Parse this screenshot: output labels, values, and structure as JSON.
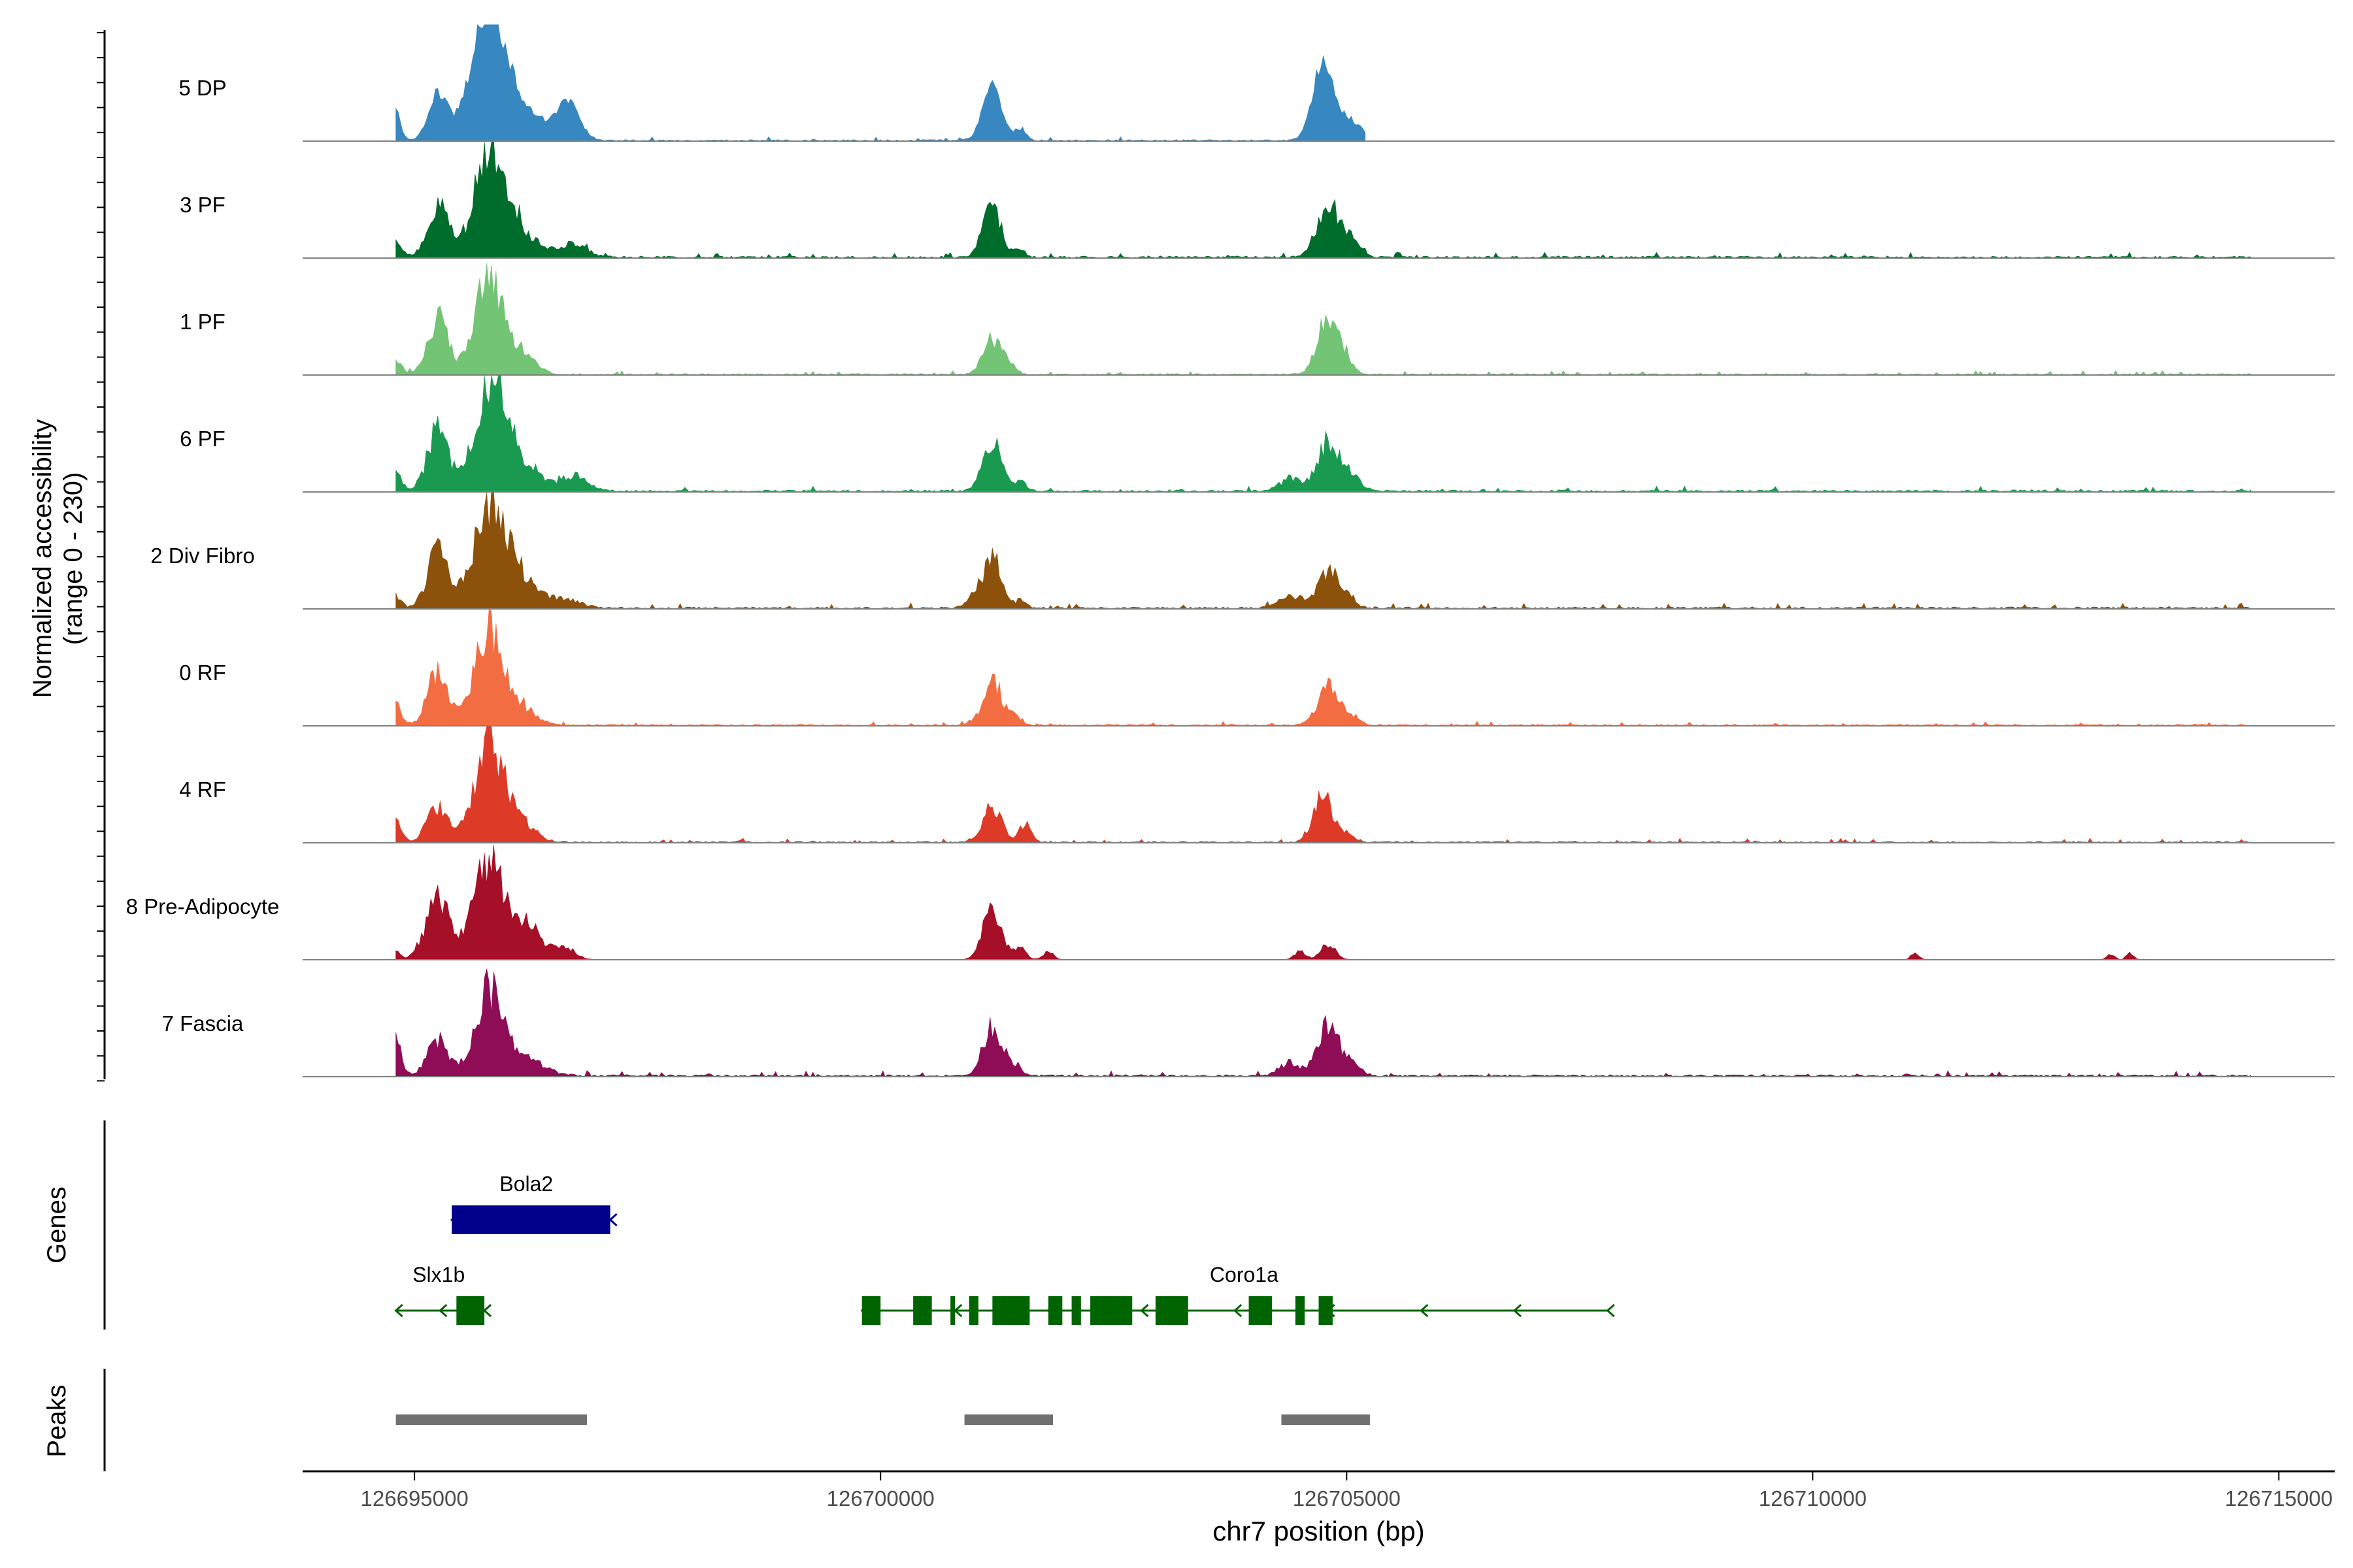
{
  "chart_data": {
    "type": "area",
    "title": "",
    "xlabel": "chr7 position (bp)",
    "ylabel": "Normalized accessibility",
    "ylabel_range": "(range 0 - 230)",
    "xlim": [
      126693800,
      126715600
    ],
    "ylim": [
      0,
      230
    ],
    "x_ticks": [
      126695000,
      126700000,
      126705000,
      126710000,
      126715000
    ],
    "x_tick_labels": [
      "126695000",
      "126700000",
      "126705000",
      "126710000",
      "126715000"
    ],
    "track_start": 126694800,
    "series": [
      {
        "name": "5 DP",
        "color": "#3787c0",
        "peaks": [
          [
            126694800,
            60,
            50
          ],
          [
            126695250,
            90,
            100
          ],
          [
            126695780,
            200,
            170
          ],
          [
            126696000,
            80,
            300
          ],
          [
            126696650,
            70,
            120
          ],
          [
            126701200,
            110,
            100
          ],
          [
            126701500,
            22,
            60
          ],
          [
            126704750,
            160,
            110
          ],
          [
            126705000,
            35,
            80
          ],
          [
            126705150,
            20,
            60
          ]
        ],
        "noise": 3,
        "end": 126705200,
        "smooth": 1
      },
      {
        "name": "3 PF",
        "color": "#006d2c",
        "peaks": [
          [
            126694800,
            30,
            60
          ],
          [
            126695250,
            100,
            110
          ],
          [
            126695800,
            200,
            160
          ],
          [
            126696100,
            50,
            200
          ],
          [
            126696700,
            25,
            150
          ],
          [
            126701200,
            95,
            100
          ],
          [
            126701500,
            15,
            60
          ],
          [
            126704800,
            100,
            120
          ],
          [
            126705050,
            30,
            100
          ]
        ],
        "noise": 4,
        "end": 126714700,
        "smooth": 0
      },
      {
        "name": "1 PF",
        "color": "#74c476",
        "peaks": [
          [
            126694800,
            25,
            60
          ],
          [
            126695250,
            110,
            110
          ],
          [
            126695800,
            200,
            150
          ],
          [
            126696200,
            40,
            120
          ],
          [
            126701200,
            70,
            100
          ],
          [
            126701400,
            15,
            60
          ],
          [
            126704800,
            110,
            110
          ],
          [
            126705000,
            25,
            80
          ]
        ],
        "noise": 3,
        "end": 126714700,
        "smooth": 0
      },
      {
        "name": "6 PF",
        "color": "#1a9a50",
        "peaks": [
          [
            126694800,
            35,
            60
          ],
          [
            126695250,
            120,
            110
          ],
          [
            126695800,
            200,
            160
          ],
          [
            126696100,
            60,
            200
          ],
          [
            126696700,
            30,
            150
          ],
          [
            126701200,
            100,
            100
          ],
          [
            126701500,
            20,
            60
          ],
          [
            126704400,
            25,
            120
          ],
          [
            126704800,
            100,
            110
          ],
          [
            126705050,
            30,
            100
          ]
        ],
        "noise": 4,
        "end": 126714700,
        "smooth": 0
      },
      {
        "name": "2 Div Fibro",
        "color": "#8c510a",
        "peaks": [
          [
            126694800,
            25,
            60
          ],
          [
            126695250,
            110,
            110
          ],
          [
            126695800,
            200,
            170
          ],
          [
            126696150,
            55,
            200
          ],
          [
            126696650,
            15,
            150
          ],
          [
            126701000,
            20,
            80
          ],
          [
            126701200,
            95,
            100
          ],
          [
            126701500,
            15,
            60
          ],
          [
            126704400,
            25,
            120
          ],
          [
            126704800,
            70,
            110
          ],
          [
            126705000,
            25,
            80
          ]
        ],
        "noise": 4,
        "end": 126714700,
        "smooth": 0
      },
      {
        "name": "0 RF",
        "color": "#f26d41",
        "peaks": [
          [
            126694800,
            40,
            60
          ],
          [
            126695250,
            100,
            110
          ],
          [
            126695800,
            190,
            150
          ],
          [
            126696150,
            35,
            150
          ],
          [
            126701200,
            90,
            100
          ],
          [
            126701450,
            15,
            60
          ],
          [
            126704800,
            80,
            110
          ],
          [
            126705050,
            20,
            80
          ]
        ],
        "noise": 3,
        "end": 126714700,
        "smooth": 0
      },
      {
        "name": "4 RF",
        "color": "#de3a28",
        "peaks": [
          [
            126694800,
            40,
            60
          ],
          [
            126695250,
            70,
            110
          ],
          [
            126695800,
            200,
            150
          ],
          [
            126696150,
            35,
            150
          ],
          [
            126701200,
            70,
            100
          ],
          [
            126701550,
            35,
            60
          ],
          [
            126704750,
            90,
            100
          ],
          [
            126705000,
            15,
            80
          ]
        ],
        "noise": 3,
        "end": 126714700,
        "smooth": 0
      },
      {
        "name": "8 Pre-Adipocyte",
        "color": "#a50f27",
        "peaks": [
          [
            126694800,
            15,
            50
          ],
          [
            126695250,
            120,
            130
          ],
          [
            126695800,
            200,
            160
          ],
          [
            126696200,
            70,
            150
          ],
          [
            126696600,
            25,
            120
          ],
          [
            126701200,
            100,
            100
          ],
          [
            126701500,
            25,
            60
          ],
          [
            126701800,
            15,
            60
          ],
          [
            126704500,
            18,
            60
          ],
          [
            126704800,
            30,
            80
          ],
          [
            126711100,
            15,
            40
          ],
          [
            126713200,
            12,
            40
          ],
          [
            126713400,
            12,
            40
          ]
        ],
        "noise": 0,
        "end": 126714700,
        "smooth": 0
      },
      {
        "name": "7 Fascia",
        "color": "#8f0d57",
        "peaks": [
          [
            126694800,
            70,
            60
          ],
          [
            126695250,
            70,
            110
          ],
          [
            126695800,
            170,
            150
          ],
          [
            126696200,
            30,
            200
          ],
          [
            126701200,
            100,
            100
          ],
          [
            126701450,
            20,
            60
          ],
          [
            126704400,
            25,
            120
          ],
          [
            126704800,
            95,
            110
          ],
          [
            126705050,
            25,
            100
          ]
        ],
        "noise": 4,
        "end": 126714700,
        "smooth": 0
      }
    ],
    "genes_label": "Genes",
    "genes": [
      {
        "name": "Bola2",
        "color": "#00008b",
        "start": 126695400,
        "end": 126697100,
        "strand": "-",
        "row": 1,
        "exons": [
          [
            126695400,
            126697100
          ]
        ]
      },
      {
        "name": "Slx1b",
        "color": "#006400",
        "start": 126694800,
        "end": 126695750,
        "strand": "-",
        "row": 2,
        "exons": [
          [
            126695450,
            126695750
          ]
        ]
      },
      {
        "name": "Coro1a",
        "color": "#006400",
        "start": 126699800,
        "end": 126707800,
        "strand": "-",
        "row": 2,
        "exons": [
          [
            126699800,
            126700000
          ],
          [
            126700350,
            126700550
          ],
          [
            126700750,
            126700800
          ],
          [
            126700950,
            126701050
          ],
          [
            126701200,
            126701600
          ],
          [
            126701800,
            126701950
          ],
          [
            126702050,
            126702150
          ],
          [
            126702250,
            126702700
          ],
          [
            126702950,
            126703300
          ],
          [
            126703950,
            126704200
          ],
          [
            126704450,
            126704550
          ],
          [
            126704700,
            126704850
          ]
        ]
      }
    ],
    "peaks_label": "Peaks",
    "peak_regions": [
      [
        126694800,
        126696850
      ],
      [
        126700900,
        126701850
      ],
      [
        126704300,
        126705250
      ]
    ]
  }
}
